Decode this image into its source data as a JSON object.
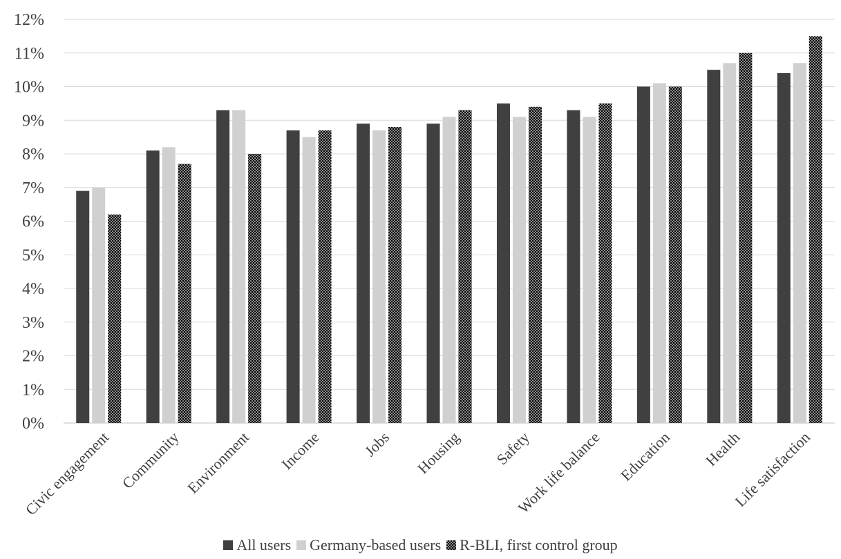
{
  "chart_data": {
    "type": "bar",
    "categories": [
      "Civic engagement",
      "Community",
      "Environment",
      "Income",
      "Jobs",
      "Housing",
      "Safety",
      "Work life balance",
      "Education",
      "Health",
      "Life satisfaction"
    ],
    "series": [
      {
        "name": "All users",
        "color": "#404040",
        "pattern": "solid",
        "values": [
          6.9,
          8.1,
          9.3,
          8.7,
          8.9,
          8.9,
          9.5,
          9.3,
          10.0,
          10.5,
          10.4
        ]
      },
      {
        "name": "Germany-based users",
        "color": "#d0d0d0",
        "pattern": "solid",
        "values": [
          7.0,
          8.2,
          9.3,
          8.5,
          8.7,
          9.1,
          9.1,
          9.1,
          10.1,
          10.7,
          10.7
        ]
      },
      {
        "name": "R-BLI, first control group",
        "color": "#000000",
        "pattern": "dotted",
        "values": [
          6.2,
          7.7,
          8.0,
          8.7,
          8.8,
          9.3,
          9.4,
          9.5,
          10.0,
          11.0,
          11.5
        ]
      }
    ],
    "ylim": [
      0,
      12
    ],
    "yticks": [
      "0%",
      "1%",
      "2%",
      "3%",
      "4%",
      "5%",
      "6%",
      "7%",
      "8%",
      "9%",
      "10%",
      "11%",
      "12%"
    ],
    "grid": true,
    "legend_position": "bottom"
  }
}
